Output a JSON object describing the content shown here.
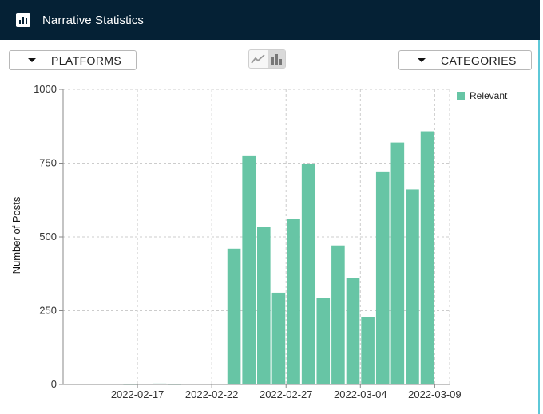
{
  "header": {
    "title": "Narrative Statistics",
    "icon": "bar-chart-icon"
  },
  "controls": {
    "platforms_label": "PLATFORMS",
    "categories_label": "CATEGORIES",
    "view_toggle": {
      "options": [
        "line-chart-icon",
        "bar-chart-icon"
      ],
      "selected": "bar"
    }
  },
  "colors": {
    "header_bg": "#052135",
    "bar": "#67c5a5",
    "accent": "#5ec8d8"
  },
  "chart_data": {
    "type": "bar",
    "title": "",
    "xlabel": "",
    "ylabel": "Number of Posts",
    "ylim": [
      0,
      1000
    ],
    "yticks": [
      0,
      250,
      500,
      750,
      1000
    ],
    "grid": true,
    "legend_position": "top-right",
    "series": [
      {
        "name": "Relevant",
        "categories": [
          "2022-02-12",
          "2022-02-13",
          "2022-02-14",
          "2022-02-15",
          "2022-02-16",
          "2022-02-17",
          "2022-02-18",
          "2022-02-19",
          "2022-02-20",
          "2022-02-21",
          "2022-02-22",
          "2022-02-23",
          "2022-02-24",
          "2022-02-25",
          "2022-02-26",
          "2022-02-27",
          "2022-02-28",
          "2022-03-01",
          "2022-03-02",
          "2022-03-03",
          "2022-03-04",
          "2022-03-05",
          "2022-03-06",
          "2022-03-07",
          "2022-03-08",
          "2022-03-09"
        ],
        "values": [
          0,
          0,
          0,
          0,
          1,
          2,
          3,
          1,
          0,
          0,
          0,
          460,
          776,
          533,
          311,
          561,
          747,
          292,
          471,
          361,
          228,
          722,
          820,
          661,
          858,
          0
        ]
      }
    ],
    "xtick_labels": [
      "2022-02-17",
      "2022-02-22",
      "2022-02-27",
      "2022-03-04",
      "2022-03-09"
    ]
  }
}
